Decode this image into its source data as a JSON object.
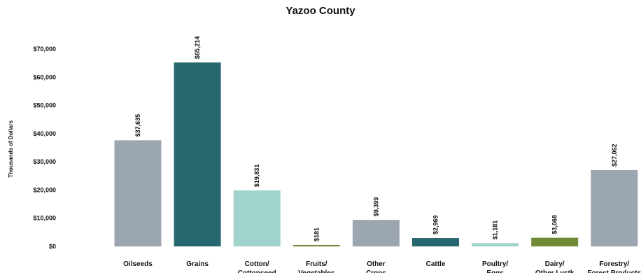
{
  "chart_data": {
    "type": "bar",
    "title": "Yazoo County",
    "ylabel": "Thousands of Dollars",
    "xlabel": "",
    "ylim": [
      0,
      70000
    ],
    "yticks": [
      0,
      10000,
      20000,
      30000,
      40000,
      50000,
      60000,
      70000
    ],
    "ytick_labels": [
      "$0",
      "$10,000",
      "$20,000",
      "$30,000",
      "$40,000",
      "$50,000",
      "$60,000",
      "$70,000"
    ],
    "grid": false,
    "categories": [
      [
        "Oilseeds"
      ],
      [
        "Grains"
      ],
      [
        "Cotton/",
        "Cottonseed"
      ],
      [
        "Fruits/",
        "Vegetables"
      ],
      [
        "Other",
        "Crops"
      ],
      [
        "Cattle"
      ],
      [
        "Poultry/",
        "Eggs"
      ],
      [
        "Dairy/",
        "Other Lvstk"
      ],
      [
        "Forestry/",
        "Forest Products"
      ]
    ],
    "values": [
      37635,
      65214,
      19831,
      181,
      9399,
      2969,
      1181,
      3068,
      27062
    ],
    "value_labels": [
      "$37,635",
      "$65,214",
      "$19,831",
      "$181",
      "$9,399",
      "$2,969",
      "$1,181",
      "$3,068",
      "$27,062"
    ],
    "colors": [
      "#9BA6B0",
      "#26686D",
      "#A0D3CB",
      "#6E8A34",
      "#9BA6B0",
      "#26686D",
      "#A0D3CB",
      "#6E8A34",
      "#9BA6B0"
    ]
  }
}
